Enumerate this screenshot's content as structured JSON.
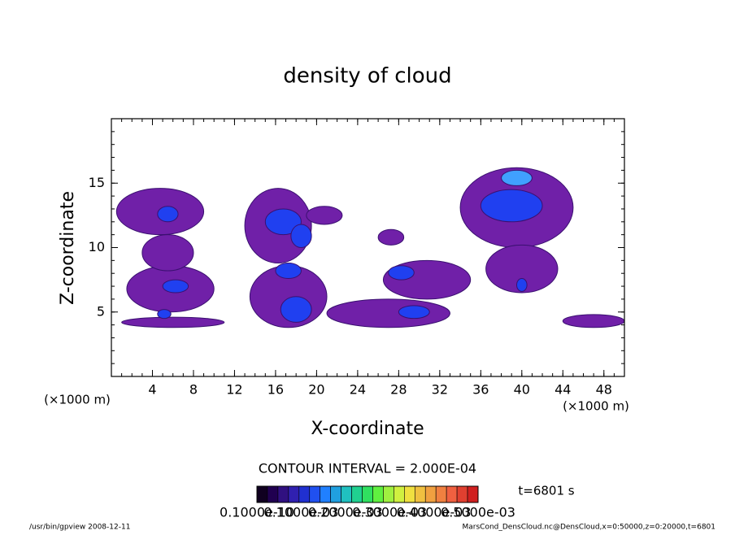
{
  "chart_data": {
    "type": "contour",
    "title": "density of cloud",
    "x_label": "X-coordinate",
    "y_label": "Z-coordinate",
    "x_unit": "(×1000 m)",
    "y_unit": "(×1000 m)",
    "xlim": [
      0,
      50
    ],
    "ylim": [
      0,
      20
    ],
    "xticks": [
      4,
      8,
      12,
      16,
      20,
      24,
      28,
      32,
      36,
      40,
      44,
      48
    ],
    "yticks": [
      5,
      10,
      15
    ],
    "xminor": 1,
    "yminor": 1,
    "blobs": [
      {
        "x": [
          1,
          11
        ],
        "z": [
          3.8,
          4.6
        ],
        "color": "#7020a8"
      },
      {
        "x": [
          1.5,
          10
        ],
        "z": [
          5,
          8.6
        ],
        "color": "#7020a8"
      },
      {
        "x": [
          3,
          8
        ],
        "z": [
          8.2,
          11
        ],
        "color": "#7020a8"
      },
      {
        "x": [
          0.5,
          9
        ],
        "z": [
          11,
          14.6
        ],
        "color": "#7020a8"
      },
      {
        "x": [
          13.5,
          21
        ],
        "z": [
          3.8,
          8.6
        ],
        "color": "#7020a8"
      },
      {
        "x": [
          13,
          19.5
        ],
        "z": [
          8.8,
          14.6
        ],
        "color": "#7020a8"
      },
      {
        "x": [
          19,
          22.5
        ],
        "z": [
          11.8,
          13.2
        ],
        "color": "#7020a8"
      },
      {
        "x": [
          21,
          33
        ],
        "z": [
          3.8,
          6
        ],
        "color": "#7020a8"
      },
      {
        "x": [
          26.5,
          35
        ],
        "z": [
          6,
          9
        ],
        "color": "#7020a8"
      },
      {
        "x": [
          26,
          28.5
        ],
        "z": [
          10.2,
          11.4
        ],
        "color": "#7020a8"
      },
      {
        "x": [
          34,
          45
        ],
        "z": [
          10,
          16.2
        ],
        "color": "#7020a8"
      },
      {
        "x": [
          36.5,
          43.5
        ],
        "z": [
          6.5,
          10.2
        ],
        "color": "#7020a8"
      },
      {
        "x": [
          44,
          50
        ],
        "z": [
          3.8,
          4.8
        ],
        "color": "#7020a8"
      },
      {
        "x": [
          5,
          7.5
        ],
        "z": [
          6.5,
          7.5
        ],
        "color": "#2040f0"
      },
      {
        "x": [
          4.5,
          6.5
        ],
        "z": [
          12,
          13.2
        ],
        "color": "#2040f0"
      },
      {
        "x": [
          4.5,
          5.8
        ],
        "z": [
          4.5,
          5.2
        ],
        "color": "#2040f0"
      },
      {
        "x": [
          15,
          18.5
        ],
        "z": [
          11,
          13
        ],
        "color": "#2040f0"
      },
      {
        "x": [
          17.5,
          19.5
        ],
        "z": [
          10,
          11.8
        ],
        "color": "#2040f0"
      },
      {
        "x": [
          16,
          18.5
        ],
        "z": [
          7.6,
          8.8
        ],
        "color": "#2040f0"
      },
      {
        "x": [
          16.5,
          19.5
        ],
        "z": [
          4.2,
          6.2
        ],
        "color": "#2040f0"
      },
      {
        "x": [
          28,
          31
        ],
        "z": [
          4.5,
          5.5
        ],
        "color": "#2040f0"
      },
      {
        "x": [
          27,
          29.5
        ],
        "z": [
          7.5,
          8.6
        ],
        "color": "#2040f0"
      },
      {
        "x": [
          36,
          42
        ],
        "z": [
          12,
          14.5
        ],
        "color": "#2040f0"
      },
      {
        "x": [
          38,
          41
        ],
        "z": [
          14.8,
          16
        ],
        "color": "#40a0ff"
      },
      {
        "x": [
          39.5,
          40.5
        ],
        "z": [
          6.6,
          7.6
        ],
        "color": "#2040f0"
      }
    ],
    "contour_interval": "CONTOUR INTERVAL = 2.000E-04",
    "time_label": "t=6801 s",
    "colorbar": {
      "colors": [
        "#100020",
        "#200050",
        "#301080",
        "#3020b0",
        "#2030d0",
        "#2050f0",
        "#2080ff",
        "#20a0e0",
        "#20c0c0",
        "#20d090",
        "#30e060",
        "#60f040",
        "#a0f040",
        "#d0f040",
        "#f0e040",
        "#f0c040",
        "#f0a040",
        "#f08040",
        "#f06040",
        "#e04030",
        "#d02020"
      ],
      "labels": [
        "0.1000e-10",
        "0.1000e-03",
        "0.2000e-03",
        "0.3000e-03",
        "0.4000e-03",
        "0.5000e-03"
      ]
    },
    "footer_left": "/usr/bin/gpview   2008-12-11",
    "footer_right": "MarsCond_DensCloud.nc@DensCloud,x=0:50000,z=0:20000,t=6801"
  }
}
